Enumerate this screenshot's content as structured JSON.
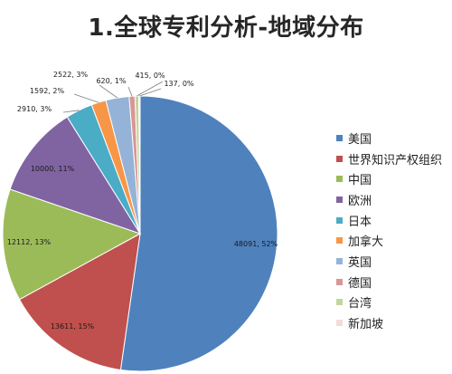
{
  "chart_data": {
    "type": "pie",
    "title": "1.全球专利分析-地域分布",
    "slices": [
      {
        "label": "美国",
        "value": 48091,
        "percent": "52%",
        "color": "#4f81bd",
        "data_label": "48091, 52%"
      },
      {
        "label": "世界知识产权组织",
        "value": 13611,
        "percent": "15%",
        "color": "#c0504d",
        "data_label": "13611, 15%"
      },
      {
        "label": "中国",
        "value": 12112,
        "percent": "13%",
        "color": "#9bbb59",
        "data_label": "12112, 13%"
      },
      {
        "label": "欧洲",
        "value": 10000,
        "percent": "11%",
        "color": "#8064a2",
        "data_label": "10000, 11%"
      },
      {
        "label": "日本",
        "value": 2910,
        "percent": "3%",
        "color": "#4bacc6",
        "data_label": "2910, 3%"
      },
      {
        "label": "加拿大",
        "value": 1592,
        "percent": "2%",
        "color": "#f79646",
        "data_label": "1592, 2%"
      },
      {
        "label": "英国",
        "value": 2522,
        "percent": "3%",
        "color": "#95b3d7",
        "data_label": "2522, 3%"
      },
      {
        "label": "德国",
        "value": 620,
        "percent": "1%",
        "color": "#d99694",
        "data_label": "620, 1%"
      },
      {
        "label": "台湾",
        "value": 415,
        "percent": "0%",
        "color": "#c3d69b",
        "data_label": "415, 0%"
      },
      {
        "label": "新加坡",
        "value": 137,
        "percent": "0%",
        "color": "#f2dcdb",
        "data_label": "137, 0%"
      }
    ],
    "legend_position": "right"
  }
}
